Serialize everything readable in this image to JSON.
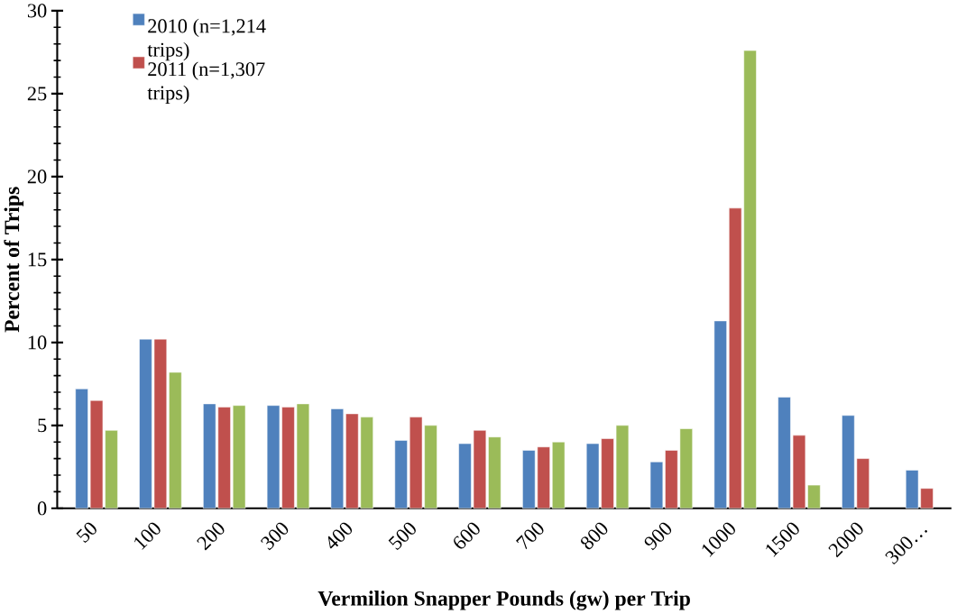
{
  "chart_data": {
    "type": "bar",
    "xlabel": "Vermilion Snapper Pounds (gw) per Trip",
    "ylabel": "Percent of Trips",
    "categories": [
      "50",
      "100",
      "200",
      "300",
      "400",
      "500",
      "600",
      "700",
      "800",
      "900",
      "1000",
      "1500",
      "2000",
      "300…"
    ],
    "series": [
      {
        "name": "2010 (n=1,214 trips)",
        "color": "#4f81bd",
        "values": [
          7.2,
          10.2,
          6.3,
          6.2,
          6.0,
          4.1,
          3.9,
          3.5,
          3.9,
          2.8,
          11.3,
          6.7,
          5.6,
          2.3
        ]
      },
      {
        "name": "2011 (n=1,307 trips)",
        "color": "#c0504d",
        "values": [
          6.5,
          10.2,
          6.1,
          6.1,
          5.7,
          5.5,
          4.7,
          3.7,
          4.2,
          3.5,
          18.1,
          4.4,
          3.0,
          1.2
        ]
      },
      {
        "color": "#9bbb59",
        "values": [
          4.7,
          8.2,
          6.2,
          6.3,
          5.5,
          5.0,
          4.3,
          4.0,
          5.0,
          4.8,
          27.6,
          1.4,
          null,
          null
        ]
      }
    ],
    "ylim": [
      0,
      30
    ],
    "yticks": [
      0,
      5,
      10,
      15,
      20,
      25,
      30
    ],
    "grid": false,
    "legend": "top left"
  }
}
